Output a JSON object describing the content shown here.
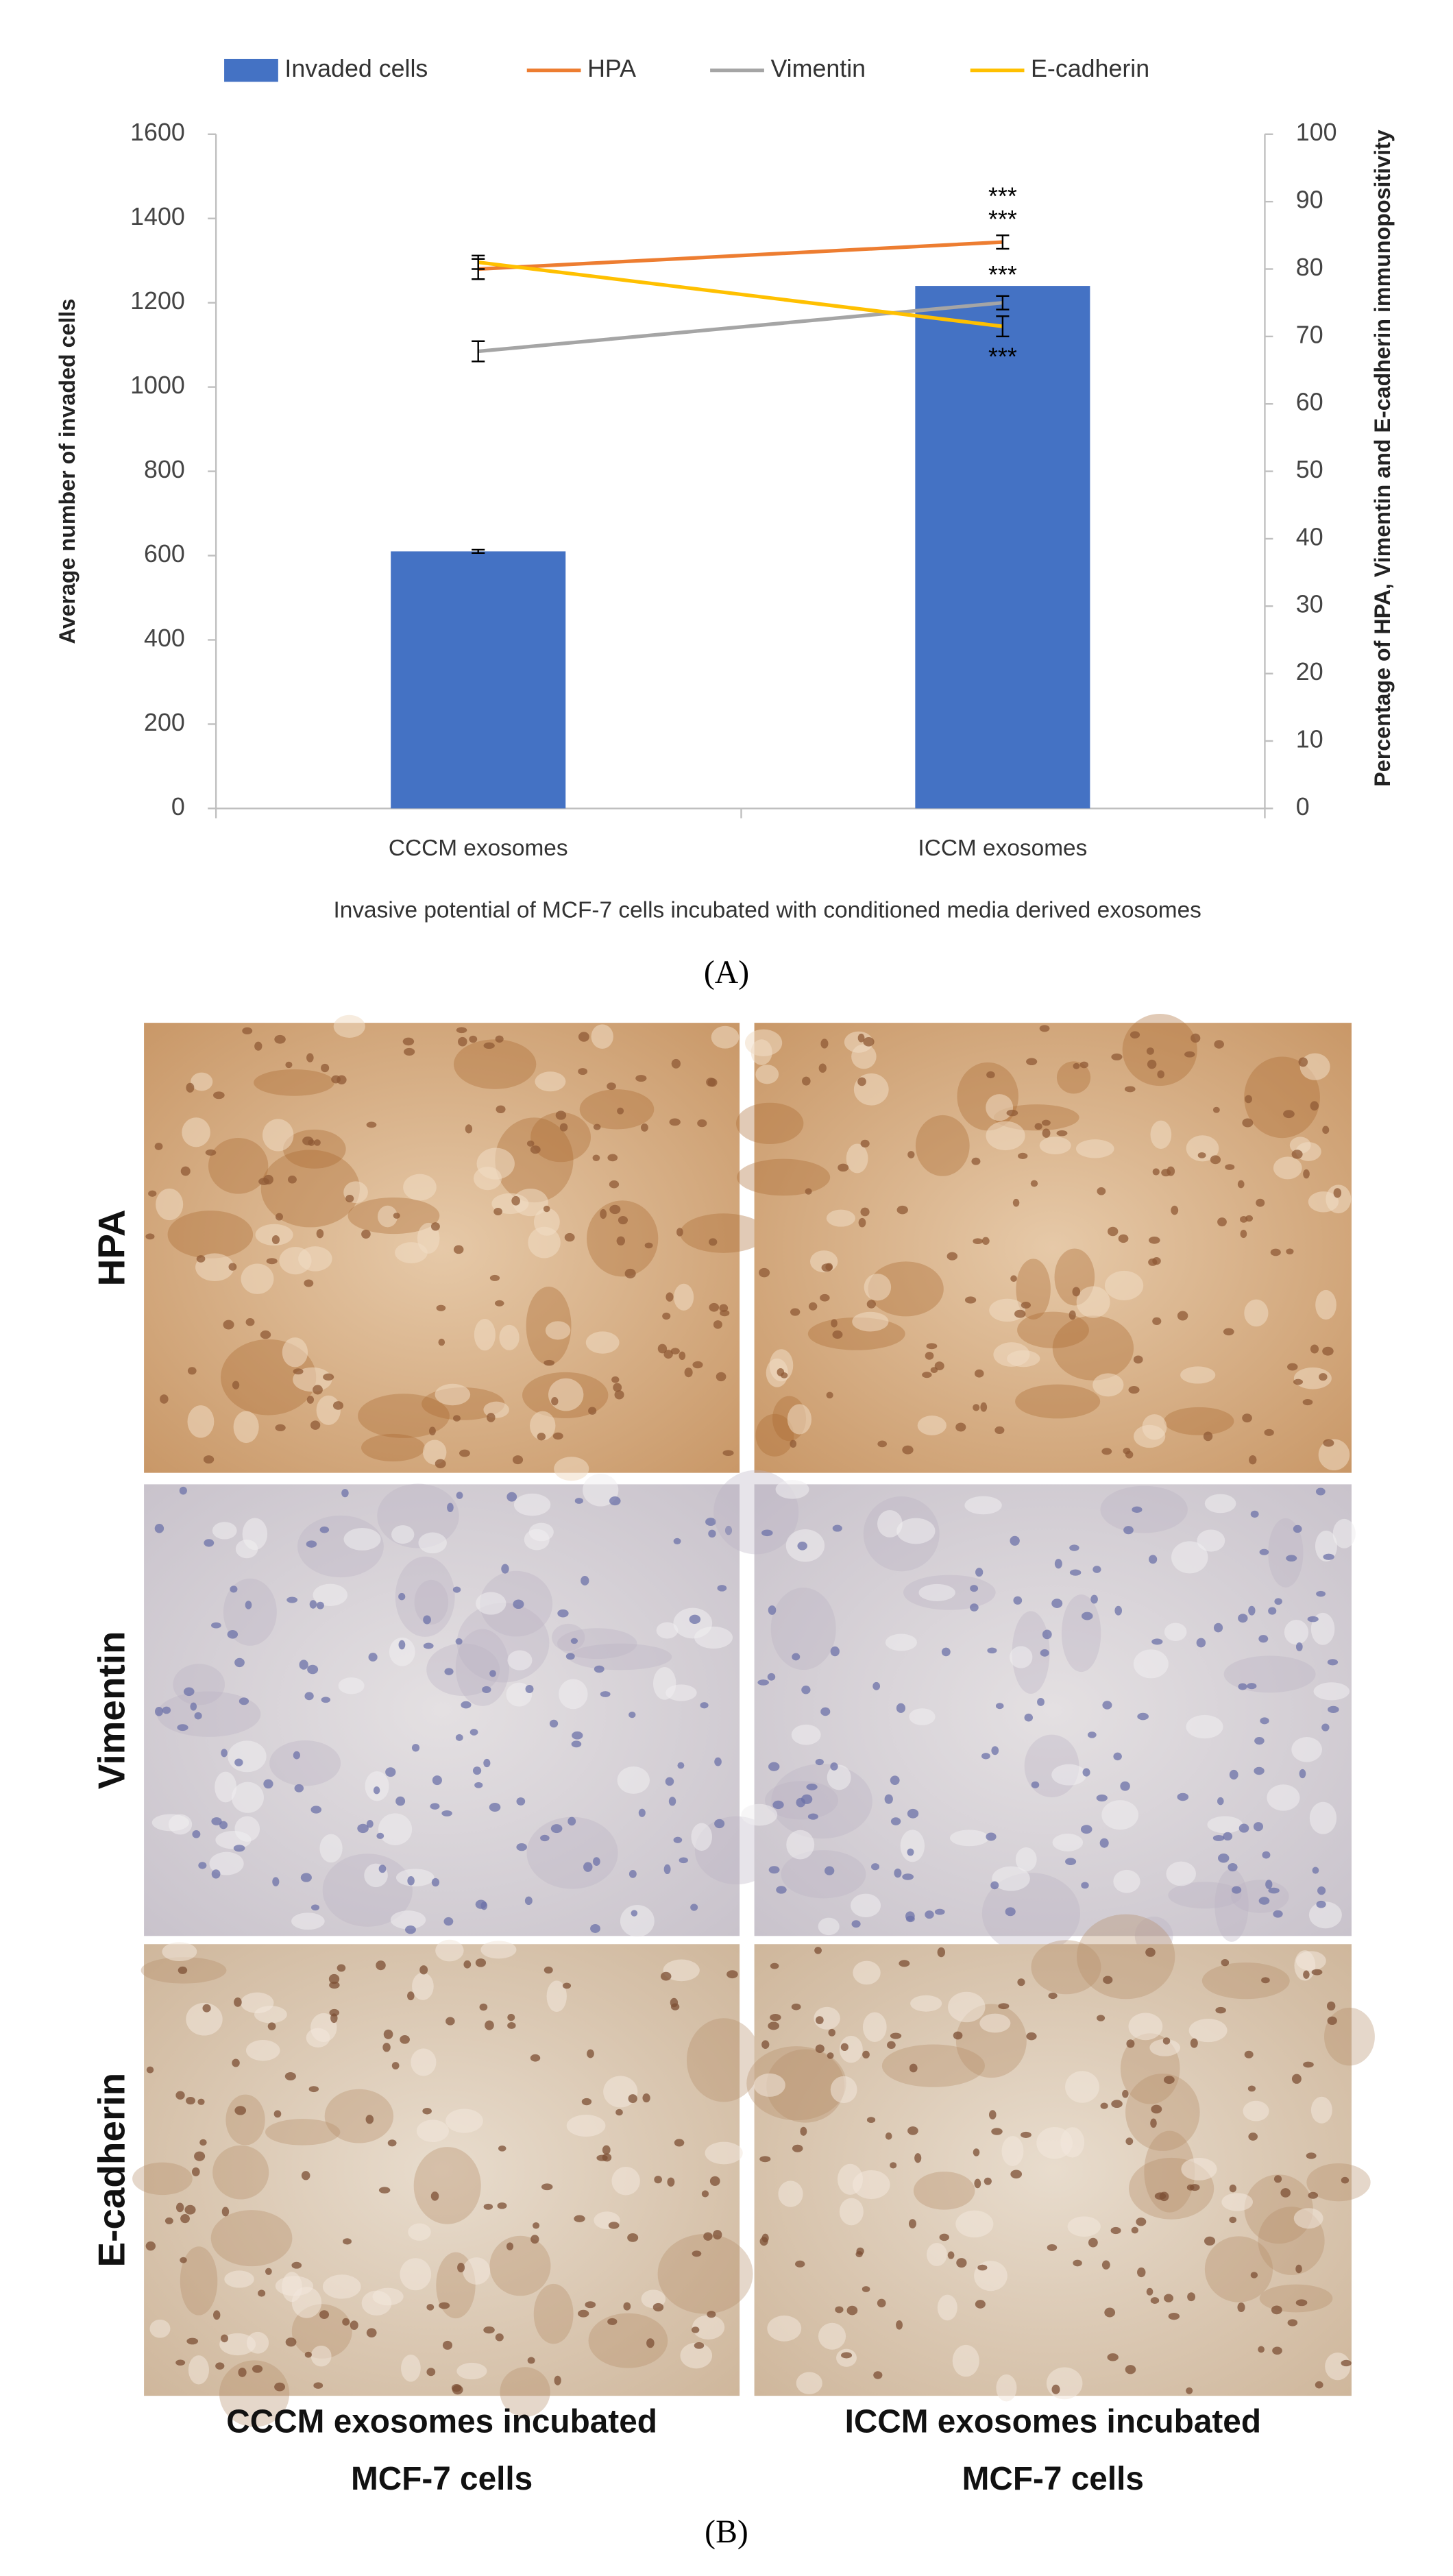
{
  "chart_data": {
    "type": "bar",
    "x_title": "Invasive potential of MCF-7 cells incubated with conditioned media derived exosomes",
    "y_title": "Average number of invaded cells",
    "y2_title": "Percentage of HPA, Vimentin and E-cadherin immunopositivity",
    "categories": [
      "CCCM  exosomes",
      "ICCM  exosomes"
    ],
    "ylim": [
      0,
      1600
    ],
    "yticks": [
      0,
      200,
      400,
      600,
      800,
      1000,
      1200,
      1400,
      1600
    ],
    "y2lim": [
      0,
      100
    ],
    "y2ticks": [
      0,
      10,
      20,
      30,
      40,
      50,
      60,
      70,
      80,
      90,
      100
    ],
    "grid": false,
    "legend": "top",
    "series": [
      {
        "name": "Invaded cells",
        "type": "bar",
        "color": "#4472c4",
        "values": [
          610,
          1240
        ],
        "errors": [
          4,
          null
        ]
      },
      {
        "name": "HPA",
        "type": "line",
        "axis": "y2",
        "color": "#ed7d31",
        "values": [
          80,
          84
        ],
        "errors": [
          1.5,
          1
        ]
      },
      {
        "name": "Vimentin",
        "type": "line",
        "axis": "y2",
        "color": "#a5a5a5",
        "values": [
          67.8,
          75
        ],
        "errors": [
          1.5,
          1
        ]
      },
      {
        "name": "E-cadherin",
        "type": "line",
        "axis": "y2",
        "color": "#ffc000",
        "values": [
          81,
          71.5
        ],
        "errors": [
          1,
          1.5
        ]
      }
    ],
    "annotations": [
      "***",
      "***",
      "***",
      "***"
    ]
  },
  "panel_a_label": "(A)",
  "panel_b": {
    "label": "(B)",
    "row_labels": [
      "HPA",
      "Vimentin",
      "E-cadherin"
    ],
    "column_labels": [
      [
        "CCCM  exosomes incubated",
        "MCF-7 cells"
      ],
      [
        "ICCM  exosomes incubated",
        "MCF-7 cells"
      ]
    ]
  }
}
